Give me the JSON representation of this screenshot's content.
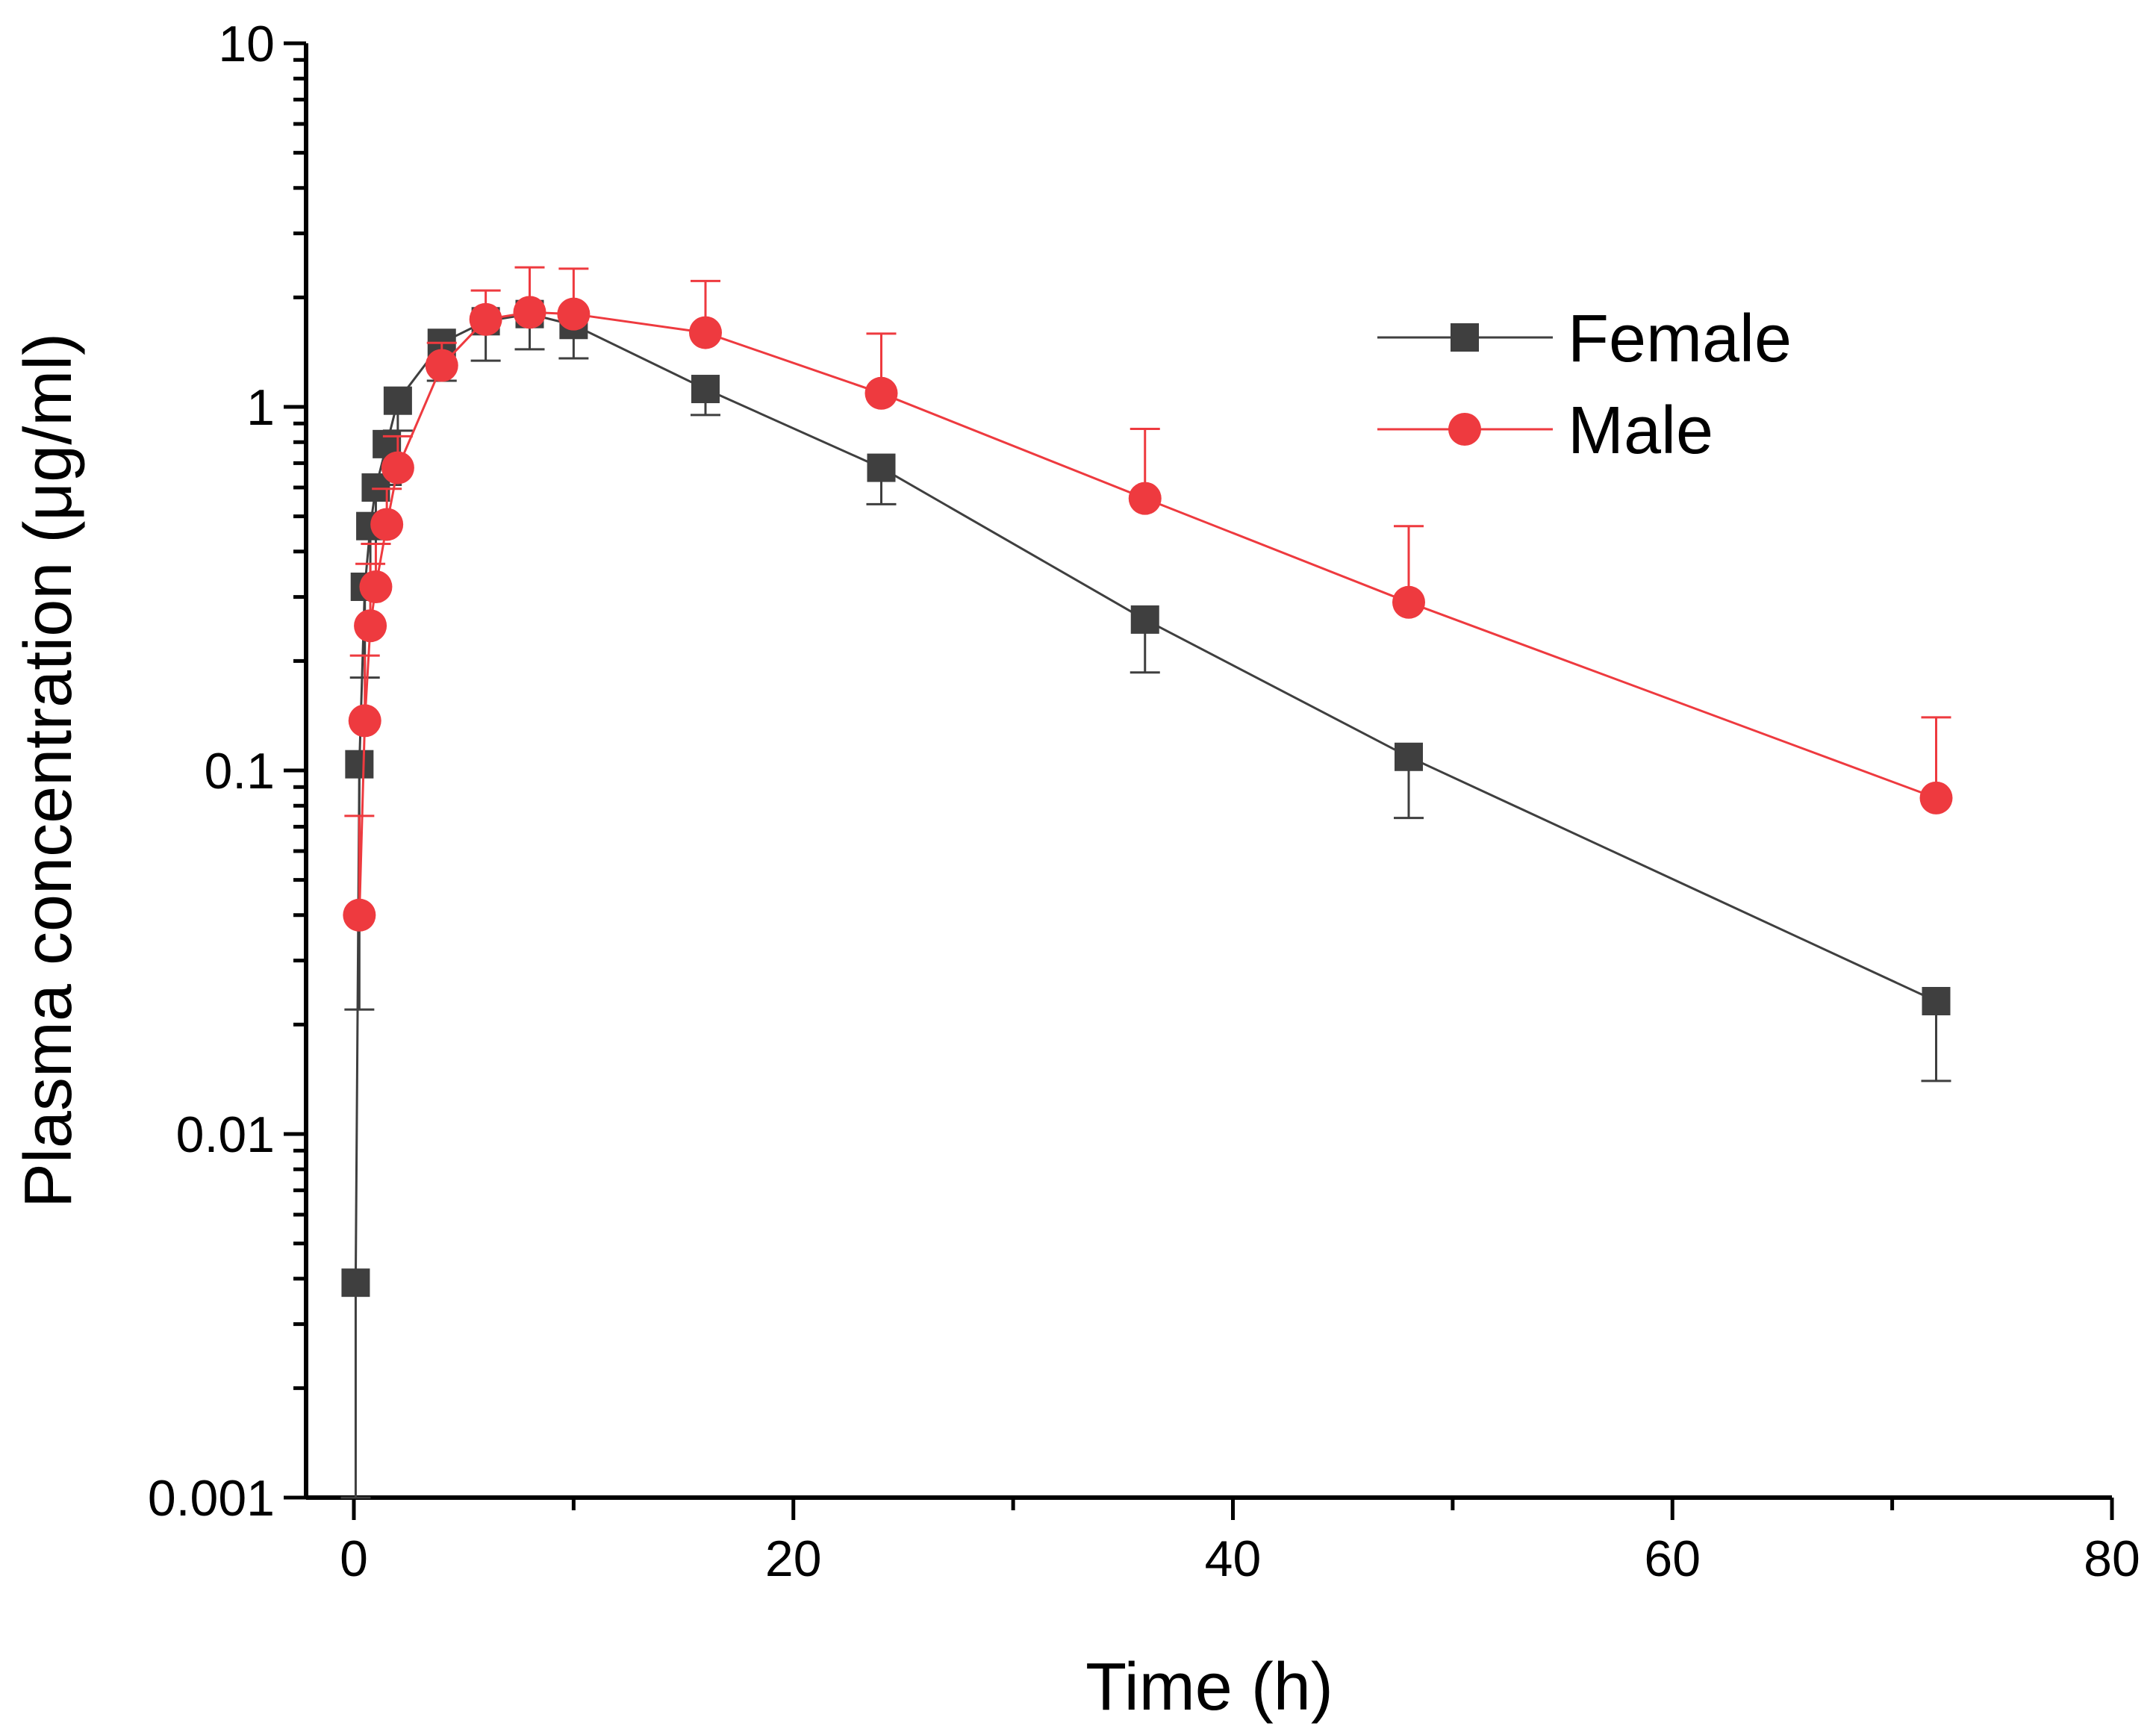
{
  "chart_data": {
    "type": "line",
    "title": "",
    "xlabel": "Time (h)",
    "ylabel": "Plasma concentration (μg/ml)",
    "xlim": [
      -2.5,
      80
    ],
    "ylim": [
      0.001,
      10
    ],
    "y_scale": "log",
    "x_ticks": [
      0,
      20,
      40,
      60,
      80
    ],
    "x_tick_labels": [
      "0",
      "20",
      "40",
      "60",
      "80"
    ],
    "x_minor_ticks": [
      10,
      30,
      50,
      70
    ],
    "y_ticks": [
      0.001,
      0.01,
      0.1,
      1,
      10
    ],
    "y_tick_labels": [
      "0.001",
      "0.01",
      "0.1",
      "1",
      "10"
    ],
    "grid": false,
    "legend_position": "top-right",
    "series": [
      {
        "name": "Female",
        "color": "#3f3f3f",
        "marker": "square",
        "x": [
          0.083,
          0.25,
          0.5,
          0.75,
          1,
          1.5,
          2,
          4,
          6,
          8,
          10,
          16,
          24,
          36,
          48,
          72
        ],
        "y": [
          0.0039,
          0.104,
          0.32,
          0.47,
          0.6,
          0.79,
          1.04,
          1.5,
          1.72,
          1.8,
          1.68,
          1.12,
          0.68,
          0.26,
          0.109,
          0.0232
        ],
        "err_lower": [
          0.0039,
          0.082,
          0.14,
          0.15,
          0.18,
          0.18,
          0.18,
          0.32,
          0.38,
          0.36,
          0.32,
          0.17,
          0.14,
          0.074,
          0.035,
          0.0092
        ]
      },
      {
        "name": "Male",
        "color": "#ee3a3f",
        "marker": "circle",
        "x": [
          0.25,
          0.5,
          0.75,
          1,
          1.5,
          2,
          4,
          6,
          8,
          10,
          16,
          24,
          36,
          48,
          72
        ],
        "y": [
          0.04,
          0.137,
          0.25,
          0.32,
          0.475,
          0.68,
          1.3,
          1.74,
          1.82,
          1.8,
          1.6,
          1.09,
          0.56,
          0.29,
          0.084
        ],
        "err_upper": [
          0.035,
          0.07,
          0.12,
          0.1,
          0.12,
          0.15,
          0.2,
          0.35,
          0.6,
          0.6,
          0.62,
          0.5,
          0.31,
          0.18,
          0.056
        ]
      }
    ]
  }
}
